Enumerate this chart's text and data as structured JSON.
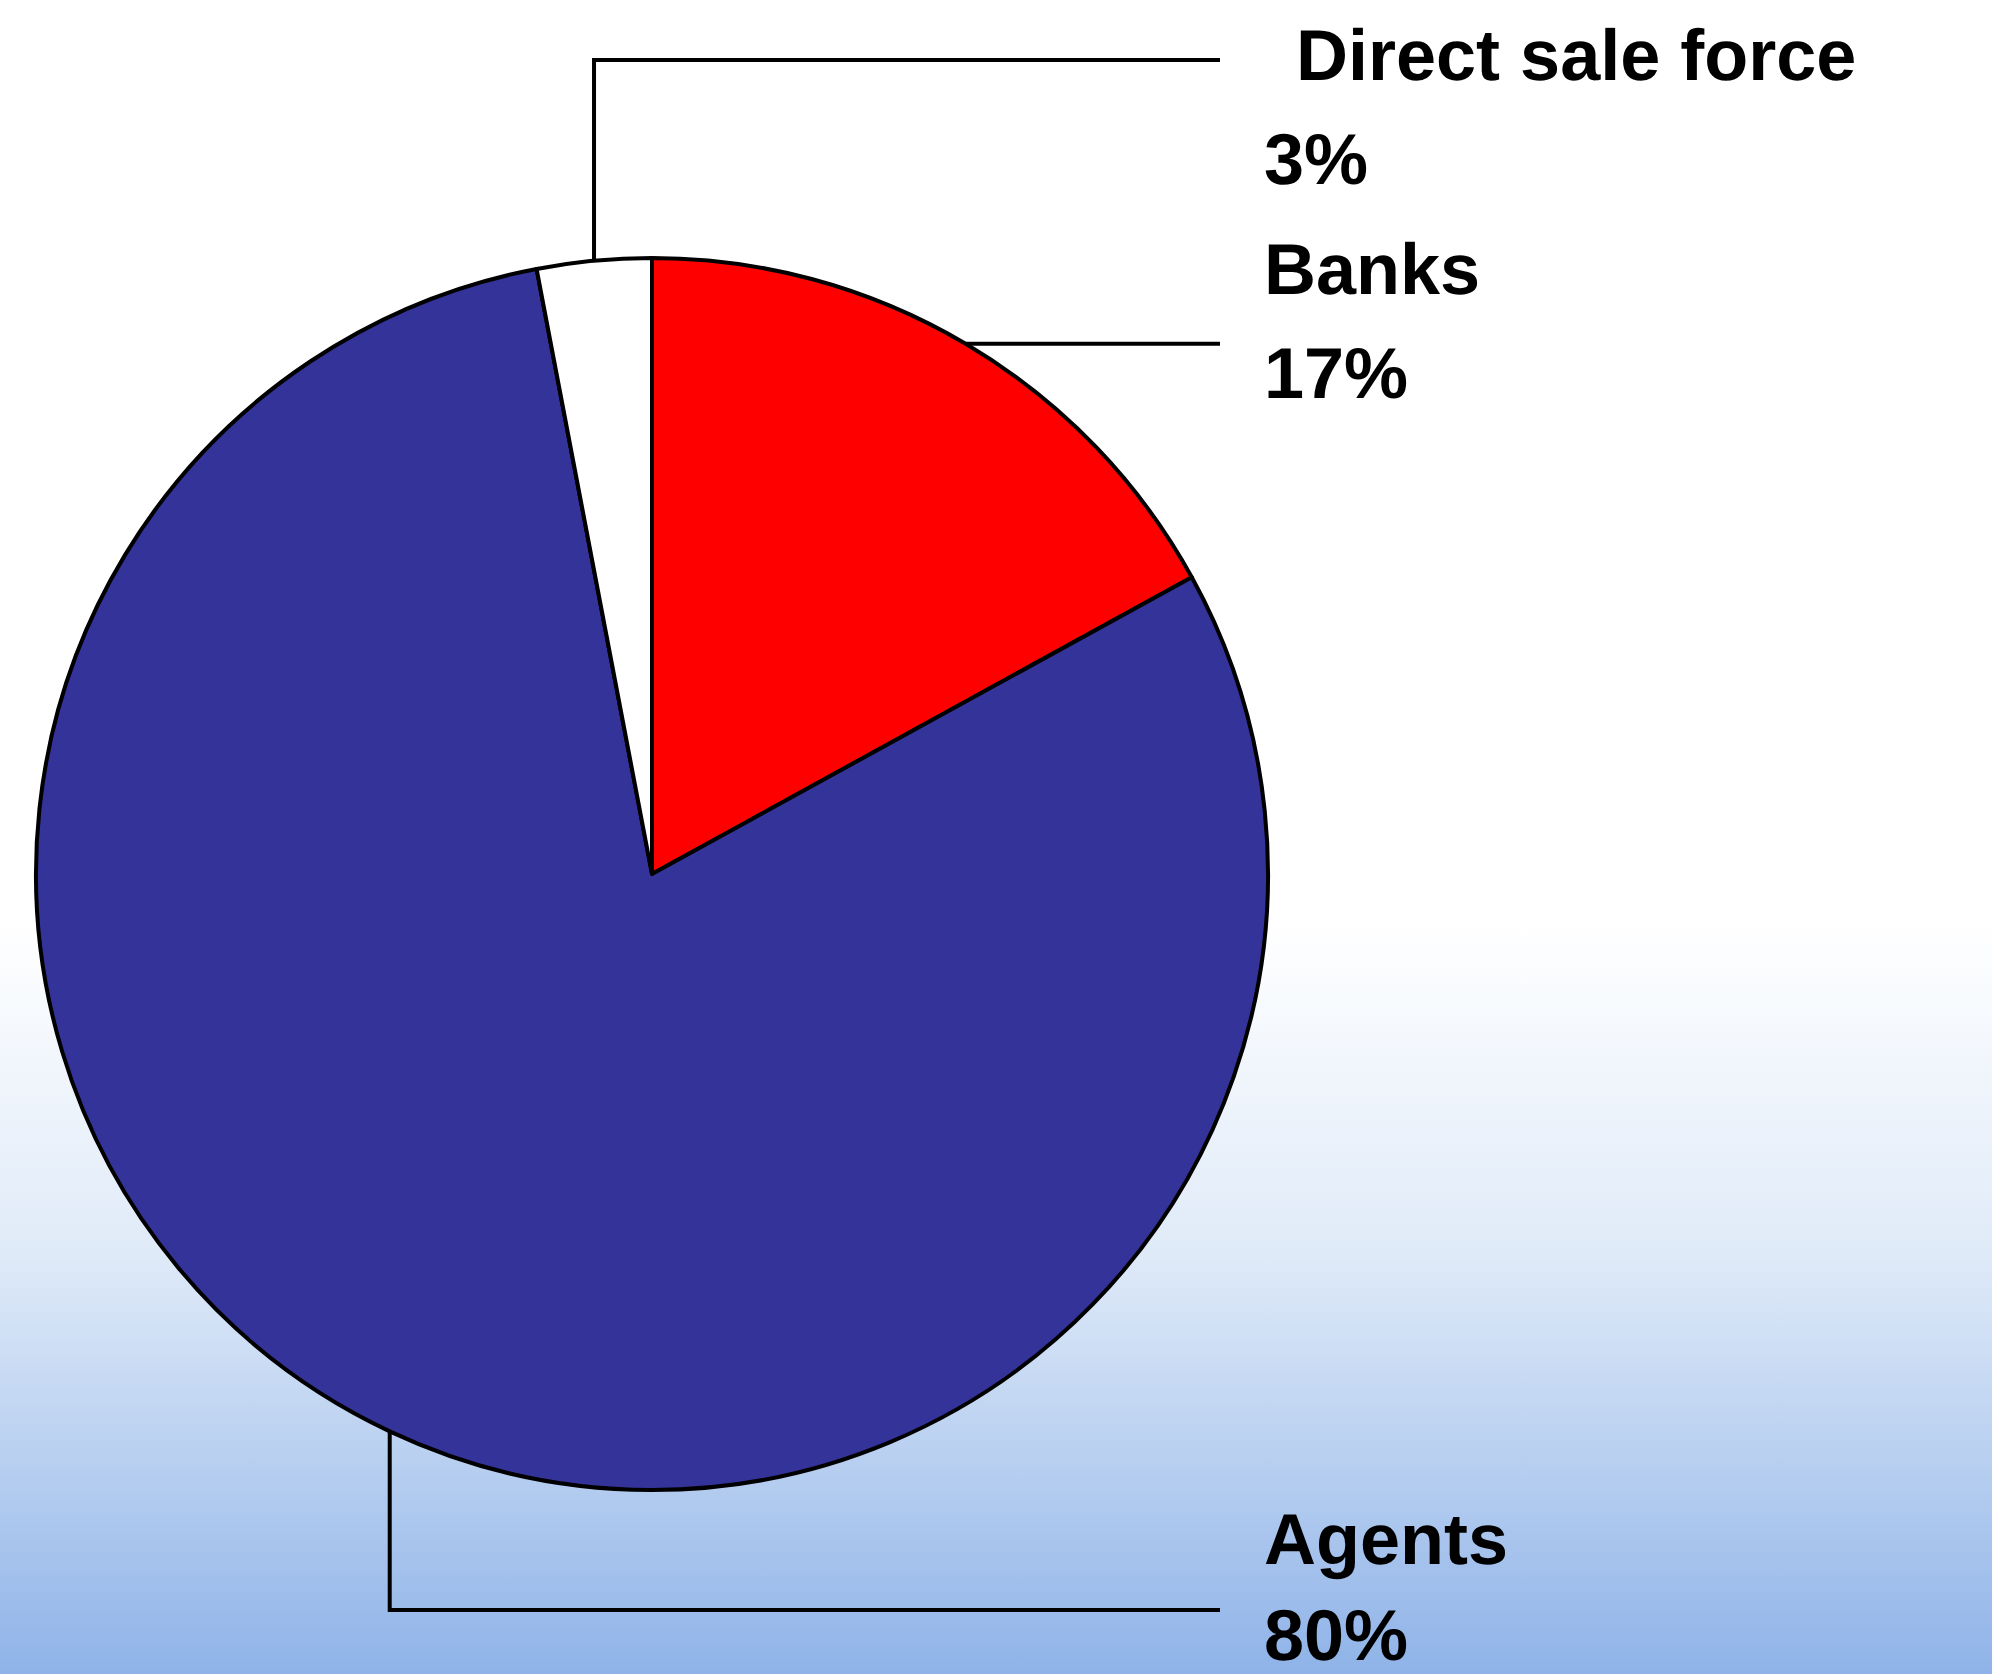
{
  "chart_data": {
    "type": "pie",
    "categories": [
      "Banks",
      "Agents",
      "Direct sale force"
    ],
    "values": [
      17,
      80,
      3
    ],
    "value_labels": [
      "17%",
      "80%",
      "3%"
    ],
    "colors": [
      "#ff0000",
      "#333399",
      "#ffffff"
    ]
  }
}
